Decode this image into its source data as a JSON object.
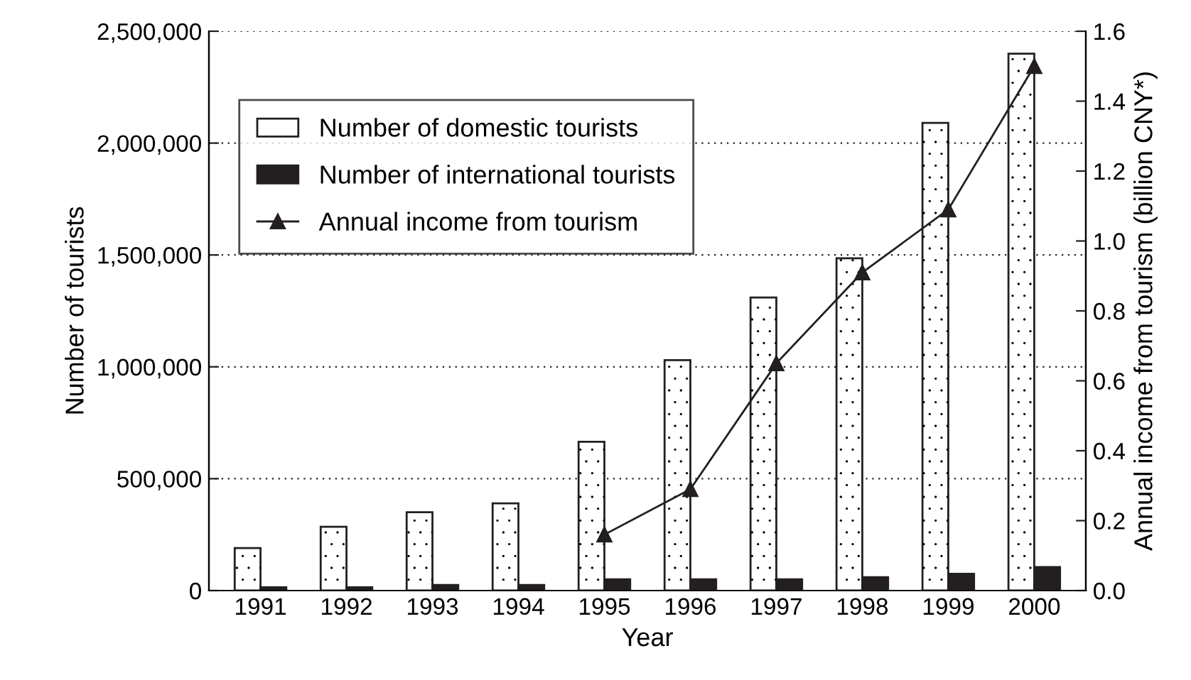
{
  "chart_data": {
    "type": "bar",
    "xlabel": "Year",
    "ylabel": "Number of tourists",
    "y2label": "Annual income from tourism (billion CNY*)",
    "categories": [
      "1991",
      "1992",
      "1993",
      "1994",
      "1995",
      "1996",
      "1997",
      "1998",
      "1999",
      "2000"
    ],
    "series": [
      {
        "name": "Number of domestic tourists",
        "type": "bar",
        "color": "#ffffff",
        "values": [
          190000,
          285000,
          350000,
          390000,
          665000,
          1030000,
          1310000,
          1485000,
          2090000,
          2400000
        ]
      },
      {
        "name": "Number of international tourists",
        "type": "bar",
        "color": "#231f20",
        "values": [
          15000,
          15000,
          25000,
          25000,
          50000,
          50000,
          50000,
          60000,
          75000,
          105000
        ]
      },
      {
        "name": "Annual income from tourism",
        "type": "line",
        "axis": "y2",
        "color": "#231f20",
        "marker": "triangle",
        "values": [
          null,
          null,
          null,
          null,
          0.16,
          0.29,
          0.65,
          0.91,
          1.09,
          1.5
        ]
      }
    ],
    "ylim": [
      0,
      2500000
    ],
    "yticks": [
      {
        "value": 0,
        "label": "0"
      },
      {
        "value": 500000,
        "label": "500,000"
      },
      {
        "value": 1000000,
        "label": "1,000,000"
      },
      {
        "value": 1500000,
        "label": "1,500,000"
      },
      {
        "value": 2000000,
        "label": "2,000,000"
      },
      {
        "value": 2500000,
        "label": "2,500,000"
      }
    ],
    "y2lim": [
      0,
      1.6
    ],
    "y2ticks": [
      {
        "value": 0,
        "label": "0.0"
      },
      {
        "value": 0.2,
        "label": "0.2"
      },
      {
        "value": 0.4,
        "label": "0.4"
      },
      {
        "value": 0.6,
        "label": "0.6"
      },
      {
        "value": 0.8,
        "label": "0.8"
      },
      {
        "value": 1.0,
        "label": "1.0"
      },
      {
        "value": 1.2,
        "label": "1.2"
      },
      {
        "value": 1.4,
        "label": "1.4"
      },
      {
        "value": 1.6,
        "label": "1.6"
      }
    ],
    "grid": "y",
    "legend": "top left"
  }
}
